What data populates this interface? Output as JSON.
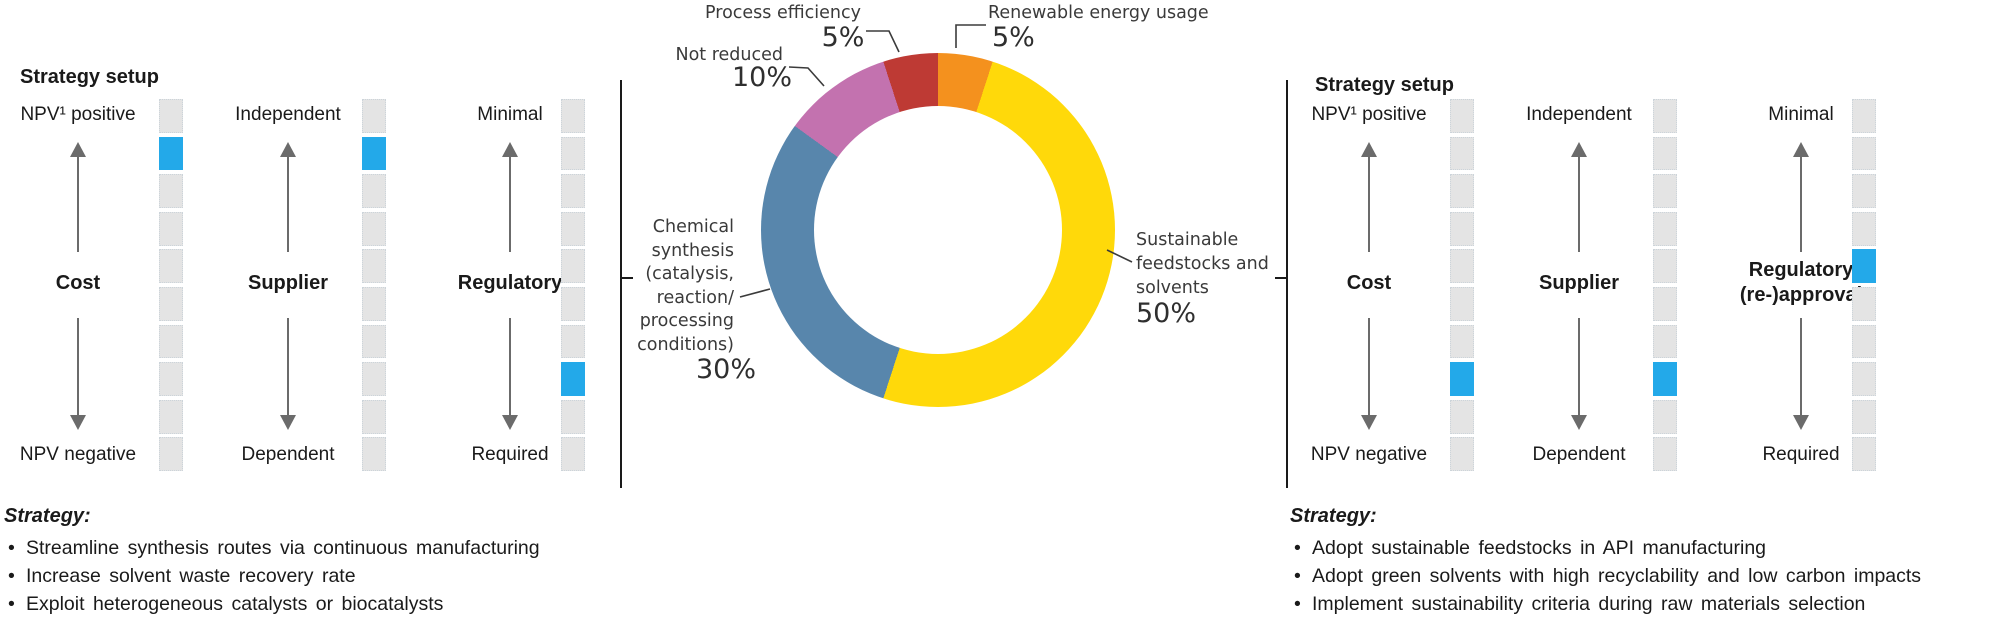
{
  "colors": {
    "active_cell": "#23A9E9",
    "inactive_cell": "#E4E4E4",
    "arrow": "#6B6B6B",
    "divider": "#1A1A1A",
    "leader": "#3B3B3B"
  },
  "panels": [
    {
      "title": "Strategy setup",
      "meters": [
        {
          "name": "Cost",
          "top_label": "NPV¹ positive",
          "bottom_label": "NPV negative",
          "cells": 10,
          "active_cell": 2
        },
        {
          "name": "Supplier",
          "top_label": "Independent",
          "bottom_label": "Dependent",
          "cells": 10,
          "active_cell": 2
        },
        {
          "name": "Regulatory",
          "top_label": "Minimal",
          "bottom_label": "Required",
          "cells": 10,
          "active_cell": 8
        }
      ],
      "strategy": {
        "heading": "Strategy:",
        "bullets": [
          "Streamline synthesis routes via continuous manufacturing",
          "Increase solvent waste recovery rate",
          "Exploit heterogeneous catalysts or biocatalysts"
        ]
      }
    },
    {
      "title": "Strategy setup",
      "meters": [
        {
          "name": "Cost",
          "top_label": "NPV¹ positive",
          "bottom_label": "NPV negative",
          "cells": 10,
          "active_cell": 8
        },
        {
          "name": "Supplier",
          "top_label": "Independent",
          "bottom_label": "Dependent",
          "cells": 10,
          "active_cell": 8
        },
        {
          "name": "Regulatory\n(re-)approval",
          "top_label": "Minimal",
          "bottom_label": "Required",
          "cells": 10,
          "active_cell": 5
        }
      ],
      "strategy": {
        "heading": "Strategy:",
        "bullets": [
          "Adopt sustainable feedstocks in API manufacturing",
          "Adopt green solvents with high recyclability and low carbon impacts",
          "Implement sustainability criteria during raw materials selection"
        ]
      }
    }
  ],
  "chart_data": {
    "type": "pie",
    "donut": true,
    "direction": "clockwise",
    "start_angle_deg": 0,
    "title": "",
    "segments": [
      {
        "label": "Renewable energy usage",
        "value": 5,
        "color": "#F4911E"
      },
      {
        "label": "Sustainable feedstocks and solvents",
        "value": 50,
        "color": "#FFD90A"
      },
      {
        "label": "Chemical synthesis (catalysis, reaction/processing conditions)",
        "value": 30,
        "color": "#5886AC"
      },
      {
        "label": "Not reduced",
        "value": 10,
        "color": "#C372AF"
      },
      {
        "label": "Process efficiency",
        "value": 5,
        "color": "#BE3A34"
      }
    ]
  },
  "donut_callouts": [
    {
      "label": "Process efficiency",
      "pct": "5%"
    },
    {
      "label": "Renewable energy usage",
      "pct": "5%"
    },
    {
      "label": "Not reduced",
      "pct": "10%"
    },
    {
      "label": "Chemical\nsynthesis\n(catalysis,\nreaction/\nprocessing\nconditions)",
      "pct": "30%"
    },
    {
      "label": "Sustainable\nfeedstocks and\nsolvents",
      "pct": "50%"
    }
  ]
}
